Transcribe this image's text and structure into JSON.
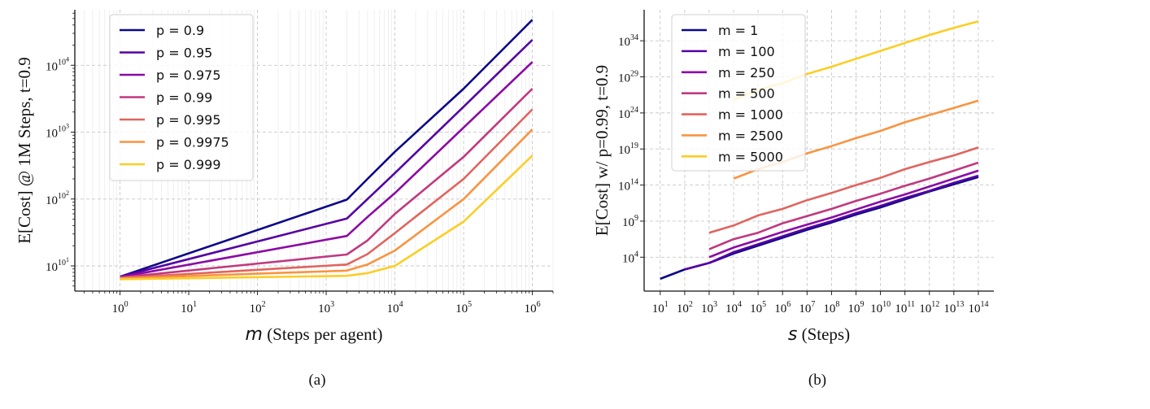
{
  "chart_data": [
    {
      "type": "line",
      "caption": "(a)",
      "xlabel_var": "m",
      "xlabel": "(Steps per agent)",
      "ylabel": "E[Cost] @ 1M Steps, t=0.9",
      "x_scale": "log",
      "y_scale": "double-log (values given as log10 E[Cost], plotted on log scale)",
      "xlim": [
        0.22,
        2000000
      ],
      "ylim_log10_cost": [
        4.2,
        67600
      ],
      "grid": true,
      "legend_position": "top-left",
      "x_ticks": [
        {
          "value": 1,
          "base": "10",
          "sup": "0"
        },
        {
          "value": 10,
          "base": "10",
          "sup": "1"
        },
        {
          "value": 100,
          "base": "10",
          "sup": "2"
        },
        {
          "value": 1000,
          "base": "10",
          "sup": "3"
        },
        {
          "value": 10000,
          "base": "10",
          "sup": "4"
        },
        {
          "value": 100000,
          "base": "10",
          "sup": "5"
        },
        {
          "value": 1000000,
          "base": "10",
          "sup": "6"
        }
      ],
      "y_ticks": [
        {
          "value": 10,
          "base": "10",
          "sup": "10",
          "sup2": "1"
        },
        {
          "value": 100,
          "base": "10",
          "sup": "10",
          "sup2": "2"
        },
        {
          "value": 1000,
          "base": "10",
          "sup": "10",
          "sup2": "3"
        },
        {
          "value": 10000,
          "base": "10",
          "sup": "10",
          "sup2": "4"
        }
      ],
      "x": [
        1,
        2000,
        4000,
        10000,
        100000,
        1000000
      ],
      "series": [
        {
          "name": "p = 0.9",
          "color": "#0d0887",
          "y_log10_cost": [
            6.9,
            98,
            200,
            510,
            4470,
            47900
          ]
        },
        {
          "name": "p = 0.95",
          "color": "#5302a3",
          "y_log10_cost": [
            6.9,
            51,
            100,
            245,
            2400,
            24000
          ]
        },
        {
          "name": "p = 0.975",
          "color": "#8b0aa5",
          "y_log10_cost": [
            6.8,
            28,
            54,
            123,
            1175,
            11200
          ]
        },
        {
          "name": "p = 0.99",
          "color": "#c0397f",
          "y_log10_cost": [
            6.7,
            14.8,
            24,
            60,
            427,
            4470
          ]
        },
        {
          "name": "p = 0.995",
          "color": "#e0645f",
          "y_log10_cost": [
            6.6,
            10.5,
            15,
            31,
            200,
            2190
          ]
        },
        {
          "name": "p = 0.9975",
          "color": "#f89441",
          "y_log10_cost": [
            6.5,
            8.5,
            10.5,
            17,
            100,
            1100
          ]
        },
        {
          "name": "p = 0.999",
          "color": "#fccd25",
          "y_log10_cost": [
            6.3,
            7.1,
            7.8,
            10,
            46,
            447
          ]
        }
      ]
    },
    {
      "type": "line",
      "caption": "(b)",
      "xlabel_var": "s",
      "xlabel": "(Steps)",
      "ylabel": "E[Cost] w/ p=0.99, t=0.9",
      "x_scale": "log",
      "y_scale": "log",
      "xlim": [
        2.2,
        430000000000000
      ],
      "ylim": [
        0.2,
        2e+38
      ],
      "grid": true,
      "legend_position": "top-left",
      "x_ticks": [
        {
          "value": 10.0,
          "base": "10",
          "sup": "1"
        },
        {
          "value": 100.0,
          "base": "10",
          "sup": "2"
        },
        {
          "value": 1000.0,
          "base": "10",
          "sup": "3"
        },
        {
          "value": 10000.0,
          "base": "10",
          "sup": "4"
        },
        {
          "value": 100000.0,
          "base": "10",
          "sup": "5"
        },
        {
          "value": 1000000.0,
          "base": "10",
          "sup": "6"
        },
        {
          "value": 10000000.0,
          "base": "10",
          "sup": "7"
        },
        {
          "value": 100000000.0,
          "base": "10",
          "sup": "8"
        },
        {
          "value": 1000000000.0,
          "base": "10",
          "sup": "9"
        },
        {
          "value": 10000000000.0,
          "base": "10",
          "sup": "10"
        },
        {
          "value": 100000000000.0,
          "base": "10",
          "sup": "11"
        },
        {
          "value": 1000000000000.0,
          "base": "10",
          "sup": "12"
        },
        {
          "value": 10000000000000.0,
          "base": "10",
          "sup": "13"
        },
        {
          "value": 100000000000000.0,
          "base": "10",
          "sup": "14"
        }
      ],
      "y_ticks": [
        {
          "value": 10000.0,
          "base": "10",
          "sup": "4"
        },
        {
          "value": 1000000000.0,
          "base": "10",
          "sup": "9"
        },
        {
          "value": 100000000000000.0,
          "base": "10",
          "sup": "14"
        },
        {
          "value": 1e+19,
          "base": "10",
          "sup": "19"
        },
        {
          "value": 1e+24,
          "base": "10",
          "sup": "24"
        },
        {
          "value": 1e+29,
          "base": "10",
          "sup": "29"
        },
        {
          "value": 1e+34,
          "base": "10",
          "sup": "34"
        }
      ],
      "series": [
        {
          "name": "m = 1",
          "color": "#0d0887",
          "x": [
            10.0,
            100.0,
            1000.0,
            10000.0,
            100000.0,
            1000000.0,
            10000000.0,
            100000000.0,
            1000000000.0,
            10000000000.0,
            100000000000.0,
            1000000000000.0,
            10000000000000.0,
            100000000000000.0
          ],
          "y": [
            10.0,
            200.0,
            1600.0,
            32000.0,
            400000.0,
            5000000.0,
            63000000.0,
            630000000.0,
            8000000000.0,
            80000000000.0,
            1000000000000.0,
            13000000000000.0,
            130000000000000.0,
            1300000000000000.0
          ]
        },
        {
          "name": "m = 100",
          "color": "#5302a3",
          "x": [
            100.0,
            1000.0,
            10000.0,
            100000.0,
            1000000.0,
            10000000.0,
            100000000.0,
            1000000000.0,
            10000000000.0,
            100000000000.0,
            1000000000000.0,
            10000000000000.0,
            100000000000000.0
          ],
          "y": [
            200.0,
            1600.0,
            50000.0,
            630000.0,
            8000000.0,
            100000000.0,
            1000000000.0,
            13000000000.0,
            130000000000.0,
            1600000000000.0,
            16000000000000.0,
            200000000000000.0,
            2000000000000000.0
          ]
        },
        {
          "name": "m = 250",
          "color": "#8b0aa5",
          "x": [
            1000.0,
            10000.0,
            100000.0,
            1000000.0,
            10000000.0,
            100000000.0,
            1000000000.0,
            10000000000.0,
            100000000000.0,
            1000000000000.0,
            10000000000000.0,
            100000000000000.0
          ],
          "y": [
            10000.0,
            220000.0,
            2500000.0,
            32000000.0,
            320000000.0,
            3200000000.0,
            40000000000.0,
            500000000000.0,
            5000000000000.0,
            63000000000000.0,
            800000000000000.0,
            1e+16
          ]
        },
        {
          "name": "m = 500",
          "color": "#c0397f",
          "x": [
            1000.0,
            10000.0,
            100000.0,
            1000000.0,
            10000000.0,
            100000000.0,
            1000000000.0,
            10000000000.0,
            100000000000.0,
            1000000000000.0,
            10000000000000.0,
            100000000000000.0
          ],
          "y": [
            130000.0,
            3200000.0,
            25000000.0,
            500000000.0,
            5000000000.0,
            50000000000.0,
            630000000000.0,
            6300000000000.0,
            80000000000000.0,
            800000000000000.0,
            1e+16,
            1.3e+17
          ]
        },
        {
          "name": "m = 1000",
          "color": "#e0645f",
          "x": [
            1000.0,
            10000.0,
            100000.0,
            1000000.0,
            10000000.0,
            100000000.0,
            1000000000.0,
            10000000000.0,
            100000000000.0,
            1000000000000.0,
            10000000000000.0,
            100000000000000.0
          ],
          "y": [
            25000000.0,
            250000000.0,
            6300000000.0,
            50000000000.0,
            800000000000.0,
            8000000000000.0,
            100000000000000.0,
            1000000000000000.0,
            1.6e+16,
            1.6e+17,
            1.3e+18,
            1.6e+19
          ]
        },
        {
          "name": "m = 2500",
          "color": "#f89441",
          "x": [
            10000.0,
            100000.0,
            1000000.0,
            10000000.0,
            100000000.0,
            1000000000.0,
            10000000000.0,
            100000000000.0,
            1000000000000.0,
            10000000000000.0,
            100000000000000.0
          ],
          "y": [
            800000000000000.0,
            1.6e+16,
            1.6e+17,
            2.5e+18,
            2.5e+19,
            3.2e+20,
            3.2e+21,
            5e+22,
            5e+23,
            5e+24,
            5e+25
          ]
        },
        {
          "name": "m = 5000",
          "color": "#fccd25",
          "x": [
            10000.0,
            100000.0,
            1000000.0,
            10000000.0,
            100000000.0,
            1000000000.0,
            10000000000.0,
            100000000000.0,
            1000000000000.0,
            10000000000000.0,
            100000000000000.0
          ],
          "y": [
            6.3e+25,
            1.6e+27,
            1.3e+28,
            2.5e+29,
            2.5e+30,
            3.2e+31,
            4e+32,
            5e+33,
            6.3e+34,
            6.3e+35,
            5e+36
          ]
        }
      ]
    }
  ]
}
